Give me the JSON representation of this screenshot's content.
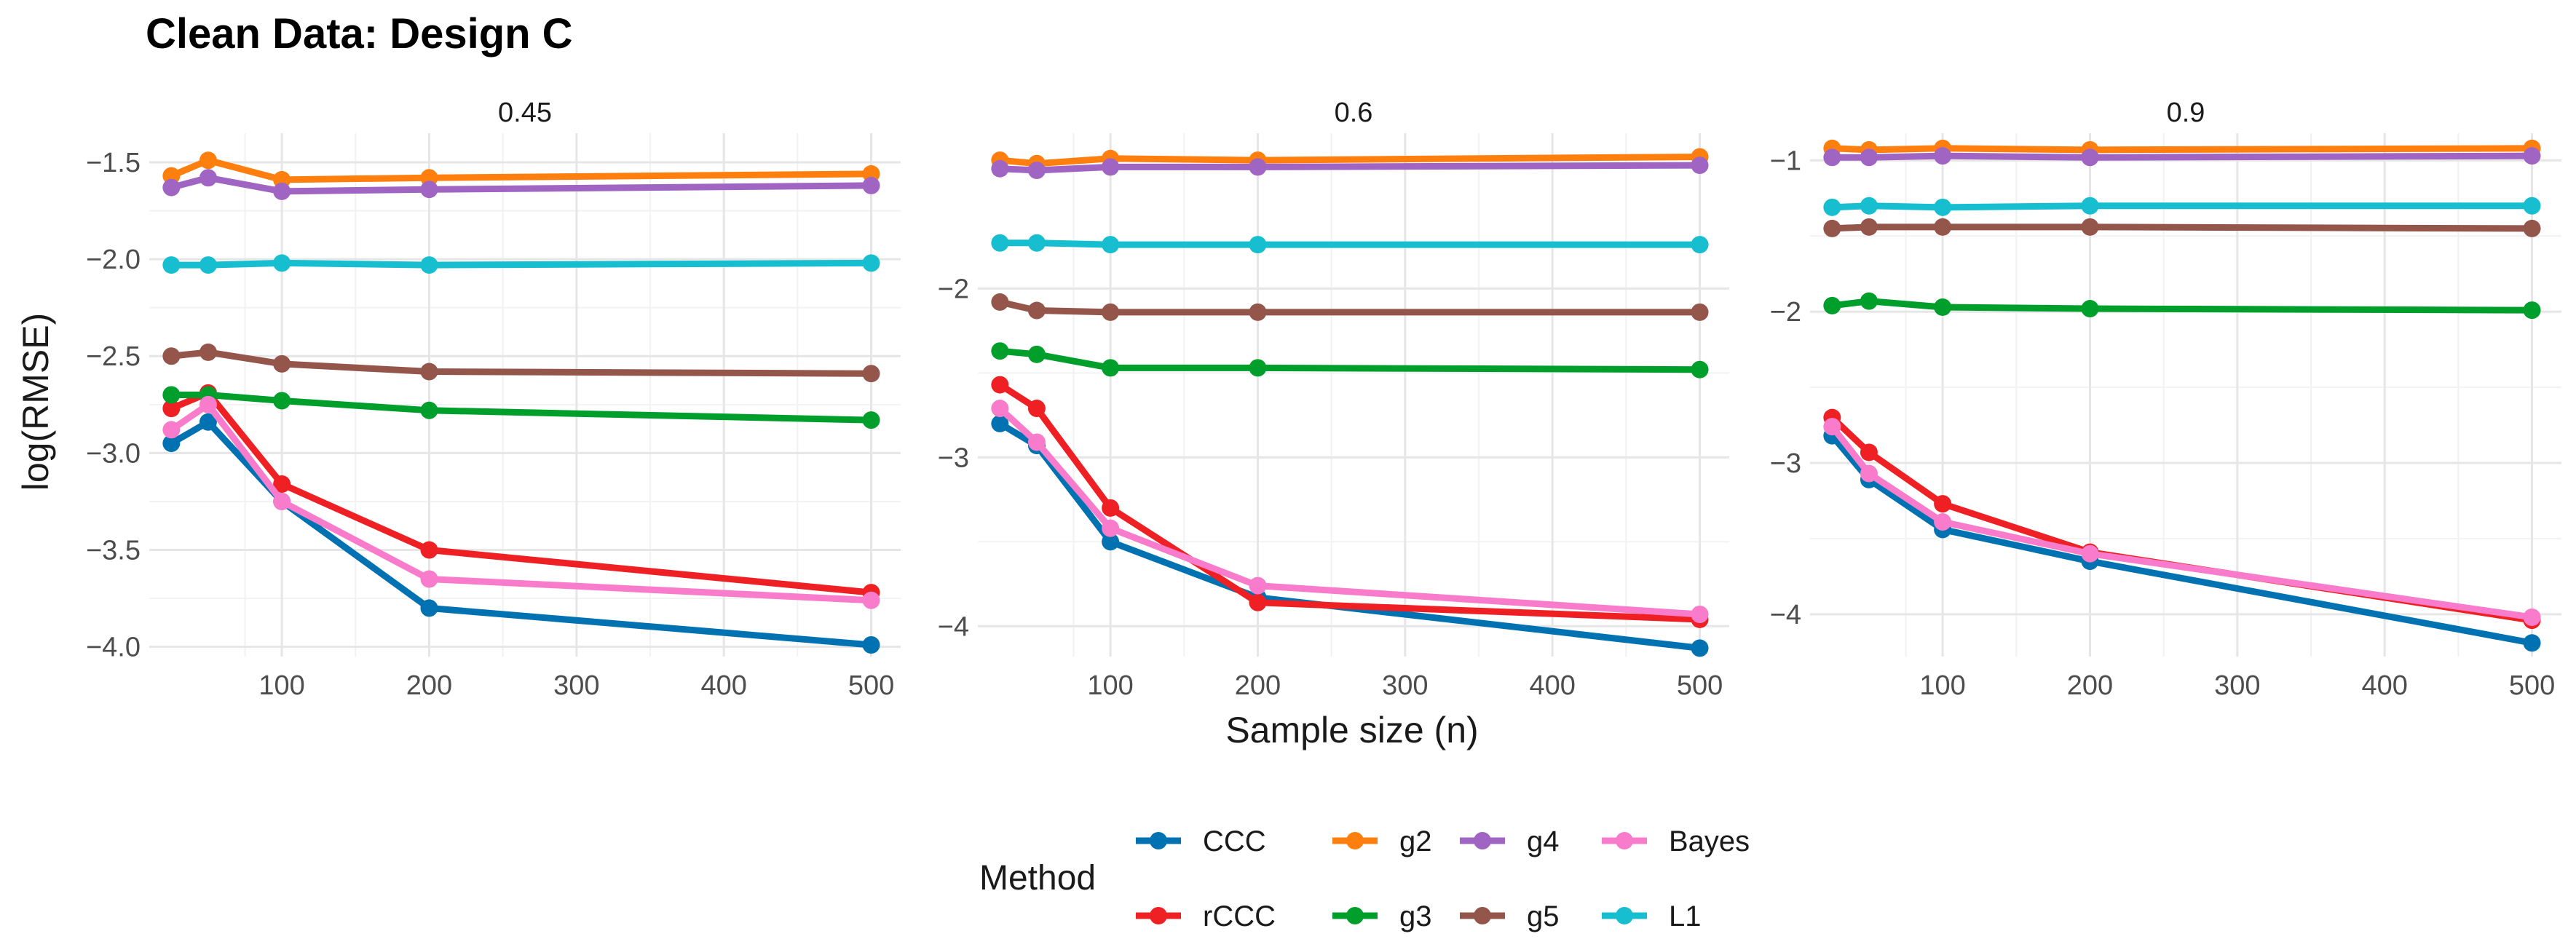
{
  "chart_data": {
    "type": "line",
    "title": "Clean Data: Design C",
    "xlabel": "Sample size (n)",
    "ylabel": "log(RMSE)",
    "x": [
      25,
      50,
      100,
      200,
      500
    ],
    "xlim": [
      10,
      520
    ],
    "xticks": [
      100,
      200,
      300,
      400,
      500
    ],
    "legend_title": "Method",
    "legend_position": "bottom",
    "series_styles": [
      {
        "name": "CCC",
        "color": "#0072B2"
      },
      {
        "name": "rCCC",
        "color": "#EE2024"
      },
      {
        "name": "g2",
        "color": "#FF7F0E"
      },
      {
        "name": "g3",
        "color": "#009E2A"
      },
      {
        "name": "g4",
        "color": "#A064C3"
      },
      {
        "name": "g5",
        "color": "#94554A"
      },
      {
        "name": "Bayes",
        "color": "#F87CCB"
      },
      {
        "name": "L1",
        "color": "#17BECF"
      }
    ],
    "panels": [
      {
        "facet": "0.45",
        "ylim": [
          -4.05,
          -1.35
        ],
        "yticks": [
          -4.0,
          -3.5,
          -3.0,
          -2.5,
          -2.0,
          -1.5
        ],
        "ytick_labels": [
          "−4.0",
          "−3.5",
          "−3.0",
          "−2.5",
          "−2.0",
          "−1.5"
        ],
        "series": [
          {
            "name": "CCC",
            "values": [
              -2.95,
              -2.84,
              -3.25,
              -3.8,
              -3.99
            ]
          },
          {
            "name": "rCCC",
            "values": [
              -2.77,
              -2.69,
              -3.16,
              -3.5,
              -3.72
            ]
          },
          {
            "name": "g2",
            "values": [
              -1.57,
              -1.49,
              -1.59,
              -1.58,
              -1.56
            ]
          },
          {
            "name": "g3",
            "values": [
              -2.7,
              -2.7,
              -2.73,
              -2.78,
              -2.83
            ]
          },
          {
            "name": "g4",
            "values": [
              -1.63,
              -1.58,
              -1.65,
              -1.64,
              -1.62
            ]
          },
          {
            "name": "g5",
            "values": [
              -2.5,
              -2.48,
              -2.54,
              -2.58,
              -2.59
            ]
          },
          {
            "name": "Bayes",
            "values": [
              -2.88,
              -2.75,
              -3.25,
              -3.65,
              -3.76
            ]
          },
          {
            "name": "L1",
            "values": [
              -2.03,
              -2.03,
              -2.02,
              -2.03,
              -2.02
            ]
          }
        ]
      },
      {
        "facet": "0.6",
        "ylim": [
          -4.18,
          -1.08
        ],
        "yticks": [
          -4,
          -3,
          -2
        ],
        "ytick_labels": [
          "−4",
          "−3",
          "−2"
        ],
        "series": [
          {
            "name": "CCC",
            "values": [
              -2.8,
              -2.93,
              -3.5,
              -3.83,
              -4.13
            ]
          },
          {
            "name": "rCCC",
            "values": [
              -2.57,
              -2.71,
              -3.3,
              -3.86,
              -3.96
            ]
          },
          {
            "name": "g2",
            "values": [
              -1.24,
              -1.26,
              -1.23,
              -1.24,
              -1.22
            ]
          },
          {
            "name": "g3",
            "values": [
              -2.37,
              -2.39,
              -2.47,
              -2.47,
              -2.48
            ]
          },
          {
            "name": "g4",
            "values": [
              -1.29,
              -1.3,
              -1.28,
              -1.28,
              -1.27
            ]
          },
          {
            "name": "g5",
            "values": [
              -2.08,
              -2.13,
              -2.14,
              -2.14,
              -2.14
            ]
          },
          {
            "name": "Bayes",
            "values": [
              -2.71,
              -2.91,
              -3.42,
              -3.76,
              -3.93
            ]
          },
          {
            "name": "L1",
            "values": [
              -1.73,
              -1.73,
              -1.74,
              -1.74,
              -1.74
            ]
          }
        ]
      },
      {
        "facet": "0.9",
        "ylim": [
          -4.28,
          -0.82
        ],
        "yticks": [
          -4,
          -3,
          -2,
          -1
        ],
        "ytick_labels": [
          "−4",
          "−3",
          "−2",
          "−1"
        ],
        "series": [
          {
            "name": "CCC",
            "values": [
              -2.82,
              -3.11,
              -3.44,
              -3.65,
              -4.19
            ]
          },
          {
            "name": "rCCC",
            "values": [
              -2.7,
              -2.93,
              -3.27,
              -3.59,
              -4.04
            ]
          },
          {
            "name": "g2",
            "values": [
              -0.92,
              -0.93,
              -0.92,
              -0.93,
              -0.92
            ]
          },
          {
            "name": "g3",
            "values": [
              -1.96,
              -1.93,
              -1.97,
              -1.98,
              -1.99
            ]
          },
          {
            "name": "g4",
            "values": [
              -0.98,
              -0.98,
              -0.97,
              -0.98,
              -0.97
            ]
          },
          {
            "name": "g5",
            "values": [
              -1.45,
              -1.44,
              -1.44,
              -1.44,
              -1.45
            ]
          },
          {
            "name": "Bayes",
            "values": [
              -2.76,
              -3.07,
              -3.39,
              -3.6,
              -4.02
            ]
          },
          {
            "name": "L1",
            "values": [
              -1.31,
              -1.3,
              -1.31,
              -1.3,
              -1.3
            ]
          }
        ]
      }
    ],
    "legend_rows": [
      [
        "CCC",
        "g2",
        "g4",
        "Bayes"
      ],
      [
        "rCCC",
        "g3",
        "g5",
        "L1"
      ]
    ]
  }
}
